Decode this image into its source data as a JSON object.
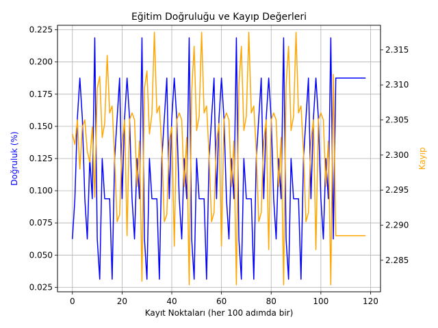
{
  "chart_data": {
    "type": "line",
    "title": "Eğitim Doğruluğu ve Kayıp Değerleri",
    "xlabel": "Kayıt Noktaları (her 100 adımda bir)",
    "ylabel_left": "Doğruluk (%)",
    "ylabel_right": "Kayıp",
    "xlim": [
      -6,
      124
    ],
    "ylim_left": [
      0.0215,
      0.2285
    ],
    "ylim_right": [
      2.2805,
      2.3185
    ],
    "x_ticks": [
      0,
      20,
      40,
      60,
      80,
      100,
      120
    ],
    "y_ticks_left": [
      0.025,
      0.05,
      0.075,
      0.1,
      0.125,
      0.15,
      0.175,
      0.2,
      0.225
    ],
    "y_ticks_right": [
      2.285,
      2.29,
      2.295,
      2.3,
      2.305,
      2.31,
      2.315
    ],
    "grid": true,
    "series": [
      {
        "axis": "left",
        "color": "#0000ff",
        "x": [
          0,
          1,
          2,
          3,
          4,
          5,
          6,
          7,
          8,
          9,
          10,
          11,
          12,
          13,
          14,
          15,
          16,
          17,
          18,
          19,
          20,
          21,
          22,
          23,
          24,
          25,
          26,
          27,
          28,
          29,
          30,
          31,
          32,
          33,
          34,
          35,
          36,
          37,
          38,
          39,
          40,
          41,
          42,
          43,
          44,
          45,
          46,
          47,
          48,
          49,
          50,
          51,
          52,
          53,
          54,
          55,
          56,
          57,
          58,
          59,
          60,
          61,
          62,
          63,
          64,
          65,
          66,
          67,
          68,
          69,
          70,
          71,
          72,
          73,
          74,
          75,
          76,
          77,
          78,
          79,
          80,
          81,
          82,
          83,
          84,
          85,
          86,
          87,
          88,
          89,
          90,
          91,
          92,
          93,
          94,
          95,
          96,
          97,
          98,
          99,
          100,
          101,
          102,
          103,
          104,
          105,
          106,
          118
        ],
        "values": [
          0.0625,
          0.09375,
          0.15625,
          0.1875,
          0.15625,
          0.09375,
          0.0625,
          0.125,
          0.09375,
          0.21875,
          0.0625,
          0.03125,
          0.125,
          0.09375,
          0.09375,
          0.09375,
          0.03125,
          0.125,
          0.15625,
          0.1875,
          0.09375,
          0.15625,
          0.1875,
          0.15625,
          0.09375,
          0.0625,
          0.125,
          0.09375,
          0.21875,
          0.0625,
          0.03125,
          0.125,
          0.09375,
          0.09375,
          0.09375,
          0.03125,
          0.125,
          0.15625,
          0.1875,
          0.09375,
          0.15625,
          0.1875,
          0.15625,
          0.09375,
          0.0625,
          0.125,
          0.09375,
          0.21875,
          0.0625,
          0.03125,
          0.125,
          0.09375,
          0.09375,
          0.09375,
          0.03125,
          0.125,
          0.15625,
          0.1875,
          0.09375,
          0.15625,
          0.1875,
          0.15625,
          0.09375,
          0.0625,
          0.125,
          0.09375,
          0.21875,
          0.0625,
          0.03125,
          0.125,
          0.09375,
          0.09375,
          0.09375,
          0.03125,
          0.125,
          0.15625,
          0.1875,
          0.09375,
          0.15625,
          0.1875,
          0.15625,
          0.09375,
          0.0625,
          0.125,
          0.09375,
          0.21875,
          0.0625,
          0.03125,
          0.125,
          0.09375,
          0.09375,
          0.09375,
          0.03125,
          0.125,
          0.15625,
          0.1875,
          0.09375,
          0.15625,
          0.1875,
          0.15625,
          0.09375,
          0.0625,
          0.125,
          0.09375,
          0.21875,
          0.0625,
          0.1875,
          0.1875
        ]
      },
      {
        "axis": "right",
        "color": "#ffa500",
        "x": [
          0,
          1,
          2,
          3,
          4,
          5,
          6,
          7,
          8,
          9,
          10,
          11,
          12,
          13,
          14,
          15,
          16,
          17,
          18,
          19,
          20,
          21,
          22,
          23,
          24,
          25,
          26,
          27,
          28,
          29,
          30,
          31,
          32,
          33,
          34,
          35,
          36,
          37,
          38,
          39,
          40,
          41,
          42,
          43,
          44,
          45,
          46,
          47,
          48,
          49,
          50,
          51,
          52,
          53,
          54,
          55,
          56,
          57,
          58,
          59,
          60,
          61,
          62,
          63,
          64,
          65,
          66,
          67,
          68,
          69,
          70,
          71,
          72,
          73,
          74,
          75,
          76,
          77,
          78,
          79,
          80,
          81,
          82,
          83,
          84,
          85,
          86,
          87,
          88,
          89,
          90,
          91,
          92,
          93,
          94,
          95,
          96,
          97,
          98,
          99,
          100,
          101,
          102,
          103,
          104,
          105,
          106,
          118
        ],
        "values": [
          2.303,
          2.3015,
          2.305,
          2.298,
          2.304,
          2.305,
          2.3005,
          2.299,
          2.304,
          2.294,
          2.3095,
          2.3112,
          2.3025,
          2.3045,
          2.3142,
          2.306,
          2.307,
          2.2995,
          2.2905,
          2.2915,
          2.3015,
          2.305,
          2.2885,
          2.305,
          2.306,
          2.305,
          2.2955,
          2.302,
          2.282,
          2.3095,
          2.312,
          2.303,
          2.3058,
          2.3175,
          2.306,
          2.307,
          2.301,
          2.2905,
          2.2915,
          2.302,
          2.304,
          2.287,
          2.305,
          2.306,
          2.305,
          2.2955,
          2.3025,
          2.2815,
          2.309,
          2.3155,
          2.3035,
          2.3055,
          2.3175,
          2.306,
          2.307,
          2.3,
          2.2905,
          2.2918,
          2.302,
          2.3045,
          2.287,
          2.305,
          2.306,
          2.305,
          2.2955,
          2.302,
          2.2815,
          2.31,
          2.3155,
          2.3035,
          2.3055,
          2.3175,
          2.306,
          2.307,
          2.3005,
          2.2905,
          2.2918,
          2.302,
          2.305,
          2.2865,
          2.305,
          2.306,
          2.305,
          2.2955,
          2.3025,
          2.2815,
          2.31,
          2.3155,
          2.3035,
          2.3055,
          2.3175,
          2.306,
          2.307,
          2.3005,
          2.2905,
          2.2918,
          2.302,
          2.305,
          2.2865,
          2.305,
          2.306,
          2.305,
          2.2955,
          2.302,
          2.2815,
          2.3115,
          2.2885,
          2.2885
        ]
      }
    ]
  }
}
